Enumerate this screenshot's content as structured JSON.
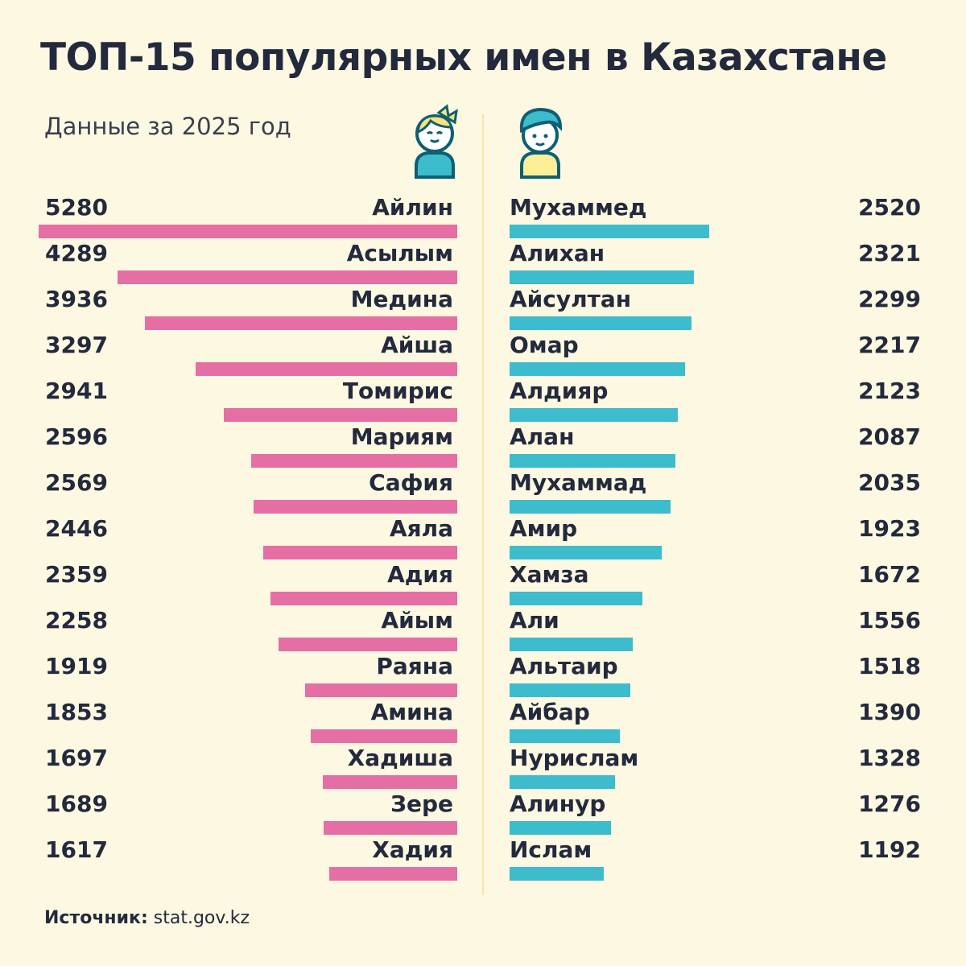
{
  "chart_data": {
    "type": "bar",
    "orientation": "horizontal",
    "title": "ТОП-15 популярных имен в Казахстане",
    "subtitle": "Данные за 2025 год",
    "source_label": "Источник:",
    "source": "stat.gov.kz",
    "colors": {
      "girls": "#e56fa4",
      "boys": "#3dbccd",
      "background": "#fdf8e2",
      "text": "#232a3d"
    },
    "icons": {
      "girls": "girl-icon",
      "boys": "boy-icon"
    },
    "series": [
      {
        "group": "girls",
        "categories": [
          "Айлин",
          "Асылым",
          "Медина",
          "Айша",
          "Томирис",
          "Мариям",
          "Сафия",
          "Аяла",
          "Адия",
          "Айым",
          "Раяна",
          "Амина",
          "Хадиша",
          "Зере",
          "Хадия"
        ],
        "values": [
          5280,
          4289,
          3936,
          3297,
          2941,
          2596,
          2569,
          2446,
          2359,
          2258,
          1919,
          1853,
          1697,
          1689,
          1617
        ]
      },
      {
        "group": "boys",
        "categories": [
          "Мухаммед",
          "Алихан",
          "Айсултан",
          "Омар",
          "Алдияр",
          "Алан",
          "Мухаммад",
          "Амир",
          "Хамза",
          "Али",
          "Альтаир",
          "Айбар",
          "Нурислам",
          "Алинур",
          "Ислам"
        ],
        "values": [
          2520,
          2321,
          2299,
          2217,
          2123,
          2087,
          2035,
          1923,
          1672,
          1556,
          1518,
          1390,
          1328,
          1276,
          1192
        ]
      }
    ]
  }
}
